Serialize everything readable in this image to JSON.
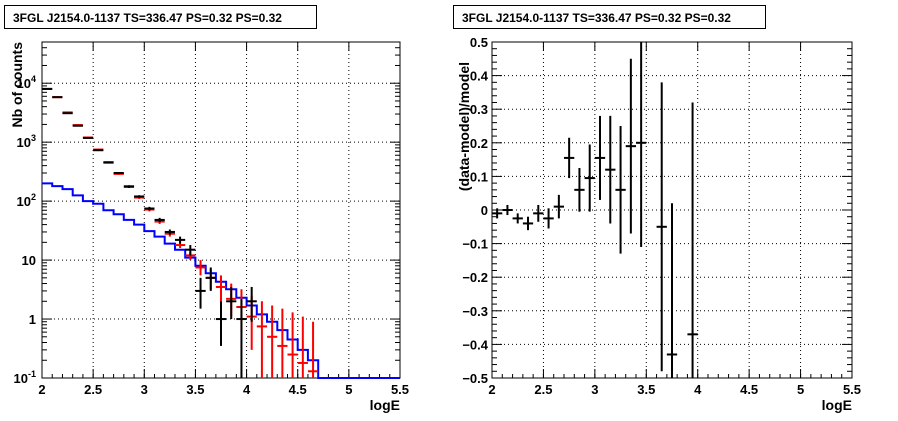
{
  "chart_data": [
    {
      "type": "line",
      "title": "3FGL J2154.0-1137 TS=336.47 PS=0.32 PS=0.32",
      "xlabel": "logE",
      "ylabel": "Nb of counts",
      "xlim": [
        2,
        5.5
      ],
      "ylim": [
        0.1,
        50000
      ],
      "yscale": "log",
      "grid": true,
      "x_ticks": [
        "2",
        "2.5",
        "3",
        "3.5",
        "4",
        "4.5",
        "5",
        "5.5"
      ],
      "y_ticks": [
        {
          "value": 0.1,
          "base": "10",
          "exp": "-1"
        },
        {
          "value": 1,
          "base": "1",
          "exp": ""
        },
        {
          "value": 10,
          "base": "10",
          "exp": ""
        },
        {
          "value": 100,
          "base": "10",
          "exp": "2"
        },
        {
          "value": 1000,
          "base": "10",
          "exp": "3"
        },
        {
          "value": 10000,
          "base": "10",
          "exp": "4"
        }
      ],
      "series": [
        {
          "color": "#0000ff",
          "style": "step",
          "bin_edges": [
            2.0,
            2.1,
            2.2,
            2.3,
            2.4,
            2.5,
            2.6,
            2.7,
            2.8,
            2.9,
            3.0,
            3.1,
            3.2,
            3.3,
            3.4,
            3.5,
            3.6,
            3.7,
            3.8,
            3.9,
            4.0,
            4.1,
            4.2,
            4.3,
            4.4,
            4.5,
            4.6,
            4.7,
            4.8,
            4.9,
            5.0,
            5.1,
            5.2,
            5.3,
            5.4,
            5.5
          ],
          "values": [
            200,
            180,
            160,
            125,
            100,
            90,
            70,
            60,
            48,
            40,
            31,
            25,
            19,
            15,
            11,
            8,
            6,
            4.3,
            3.2,
            2.3,
            1.7,
            1.2,
            0.9,
            0.65,
            0.45,
            0.3,
            0.2,
            0.1,
            0.1,
            0.1,
            0.1,
            0.1,
            0.1,
            0.1,
            0.1
          ]
        },
        {
          "color": "#ff0000",
          "style": "errorbar",
          "x": [
            2.05,
            2.15,
            2.25,
            2.35,
            2.45,
            2.55,
            2.65,
            2.75,
            2.85,
            2.95,
            3.05,
            3.15,
            3.25,
            3.35,
            3.45,
            3.55,
            3.65,
            3.75,
            3.85,
            3.95,
            4.05,
            4.15,
            4.25,
            4.35,
            4.45,
            4.55,
            4.65
          ],
          "y": [
            8000,
            5800,
            3200,
            1950,
            1200,
            750,
            460,
            290,
            180,
            115,
            72,
            45,
            28,
            18,
            12,
            7.5,
            5,
            3.5,
            2.2,
            1.6,
            1.1,
            0.75,
            0.5,
            0.35,
            0.25,
            0.18,
            0.13
          ],
          "y_low": [
            7900,
            5700,
            3140,
            1900,
            1170,
            730,
            445,
            280,
            172,
            109,
            67,
            41,
            25,
            16,
            10,
            5.5,
            3.2,
            2,
            1.1,
            0.6,
            0.3,
            0.1,
            0.1,
            0.1,
            0.1,
            0.1,
            0.1
          ],
          "y_high": [
            8100,
            5900,
            3260,
            2000,
            1230,
            770,
            475,
            300,
            188,
            121,
            77,
            49,
            31,
            21,
            14,
            10,
            7,
            5.5,
            4,
            3.2,
            2.5,
            2,
            1.7,
            1.5,
            1.3,
            1.1,
            0.9
          ]
        },
        {
          "color": "#000000",
          "style": "errorbar",
          "x": [
            2.05,
            2.15,
            2.25,
            2.35,
            2.45,
            2.55,
            2.65,
            2.75,
            2.85,
            2.95,
            3.05,
            3.15,
            3.25,
            3.35,
            3.45,
            3.55,
            3.65,
            3.75,
            3.85,
            3.95,
            4.05
          ],
          "y": [
            8000,
            5800,
            3100,
            1900,
            1180,
            730,
            450,
            300,
            175,
            120,
            75,
            48,
            30,
            22,
            15,
            3,
            5,
            1,
            2,
            1,
            2
          ],
          "y_low": [
            7900,
            5700,
            3040,
            1850,
            1150,
            710,
            435,
            290,
            167,
            114,
            70,
            44,
            27,
            19,
            12,
            1.5,
            3,
            0.35,
            1,
            0.1,
            0.9
          ],
          "y_high": [
            8100,
            5900,
            3160,
            1950,
            1210,
            750,
            465,
            310,
            183,
            126,
            80,
            52,
            33,
            25,
            18,
            5,
            7.5,
            2,
            3.5,
            2.2,
            3.5
          ]
        }
      ]
    },
    {
      "type": "scatter",
      "title": "3FGL J2154.0-1137 TS=336.47 PS=0.32 PS=0.32",
      "xlabel": "logE",
      "ylabel": "(data-model)/model",
      "xlim": [
        2,
        5.5
      ],
      "ylim": [
        -0.5,
        0.5
      ],
      "grid": true,
      "x_ticks": [
        "2",
        "2.5",
        "3",
        "3.5",
        "4",
        "4.5",
        "5",
        "5.5"
      ],
      "y_ticks": [
        "−0.5",
        "−0.4",
        "−0.3",
        "−0.2",
        "−0.1",
        "0",
        "0.1",
        "0.2",
        "0.3",
        "0.4",
        "0.5"
      ],
      "series": [
        {
          "color": "#000000",
          "x": [
            2.05,
            2.15,
            2.25,
            2.35,
            2.45,
            2.55,
            2.65,
            2.75,
            2.85,
            2.95,
            3.05,
            3.15,
            3.25,
            3.35,
            3.45,
            3.65,
            3.75,
            3.95
          ],
          "y": [
            -0.01,
            0.0,
            -0.025,
            -0.04,
            -0.01,
            -0.025,
            0.01,
            0.155,
            0.06,
            0.095,
            0.155,
            0.12,
            0.06,
            0.19,
            0.2,
            -0.05,
            -0.43,
            -0.37
          ],
          "err": [
            0.015,
            0.015,
            0.015,
            0.02,
            0.025,
            0.03,
            0.035,
            0.06,
            0.065,
            0.1,
            0.125,
            0.16,
            0.19,
            0.26,
            0.31,
            0.43,
            0.45,
            0.69
          ]
        }
      ]
    }
  ]
}
